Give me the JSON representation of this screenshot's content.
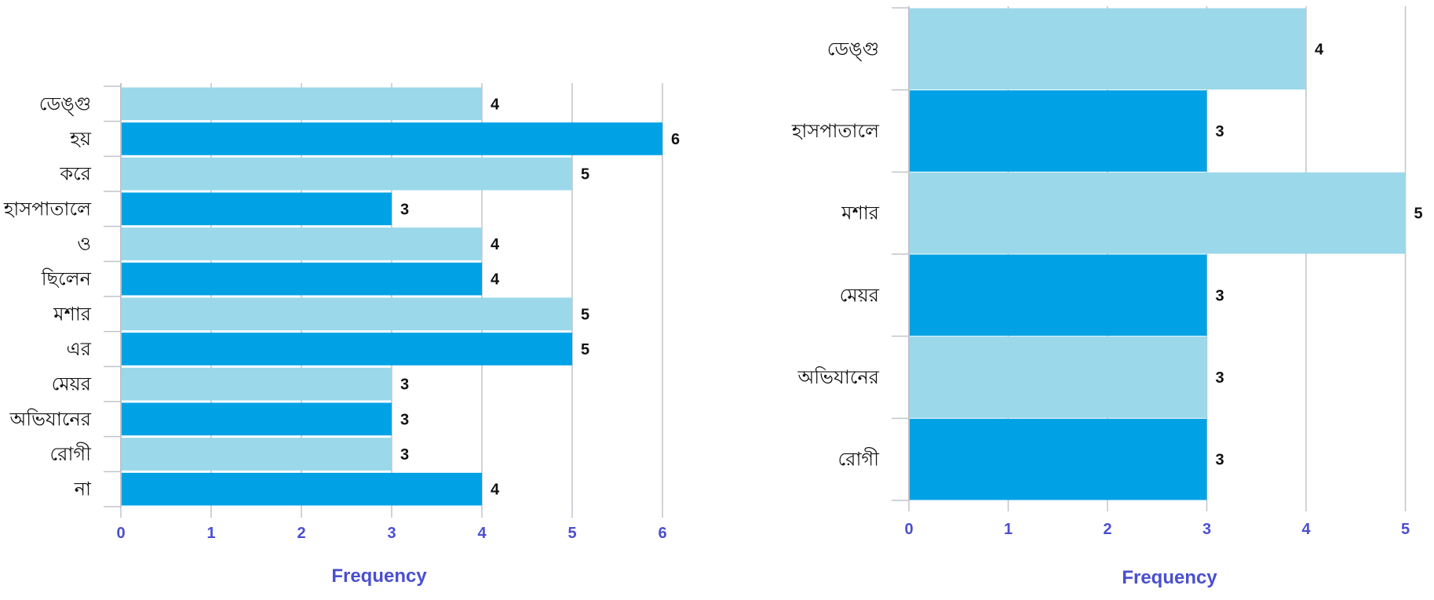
{
  "colors": {
    "light": "#9ad8ea",
    "dark": "#00a2e5",
    "grid": "#c0c4cc",
    "axis": "#4a4fd0"
  },
  "chart_data": [
    {
      "type": "bar",
      "orientation": "horizontal",
      "categories": [
        "ডেঙ্গু",
        "হয়",
        "করে",
        "হাসপাতালে",
        "ও",
        "ছিলেন",
        "মশার",
        "এর",
        "মেয়র",
        "অভিযানের",
        "রোগী",
        "না"
      ],
      "values": [
        4,
        6,
        5,
        3,
        4,
        4,
        5,
        5,
        3,
        3,
        3,
        4
      ],
      "xlabel": "Frequency",
      "xlim": [
        0,
        6
      ],
      "xticks": [
        "0",
        "1",
        "2",
        "3",
        "4",
        "5",
        "6"
      ],
      "grid": true
    },
    {
      "type": "bar",
      "orientation": "horizontal",
      "categories": [
        "ডেঙ্গু",
        "হাসপাতালে",
        "মশার",
        "মেয়র",
        "অভিযানের",
        "রোগী"
      ],
      "values": [
        4,
        3,
        5,
        3,
        3,
        3
      ],
      "xlabel": "Frequency",
      "xlim": [
        0,
        5
      ],
      "xticks": [
        "0",
        "1",
        "2",
        "3",
        "4",
        "5"
      ],
      "grid": true
    }
  ]
}
